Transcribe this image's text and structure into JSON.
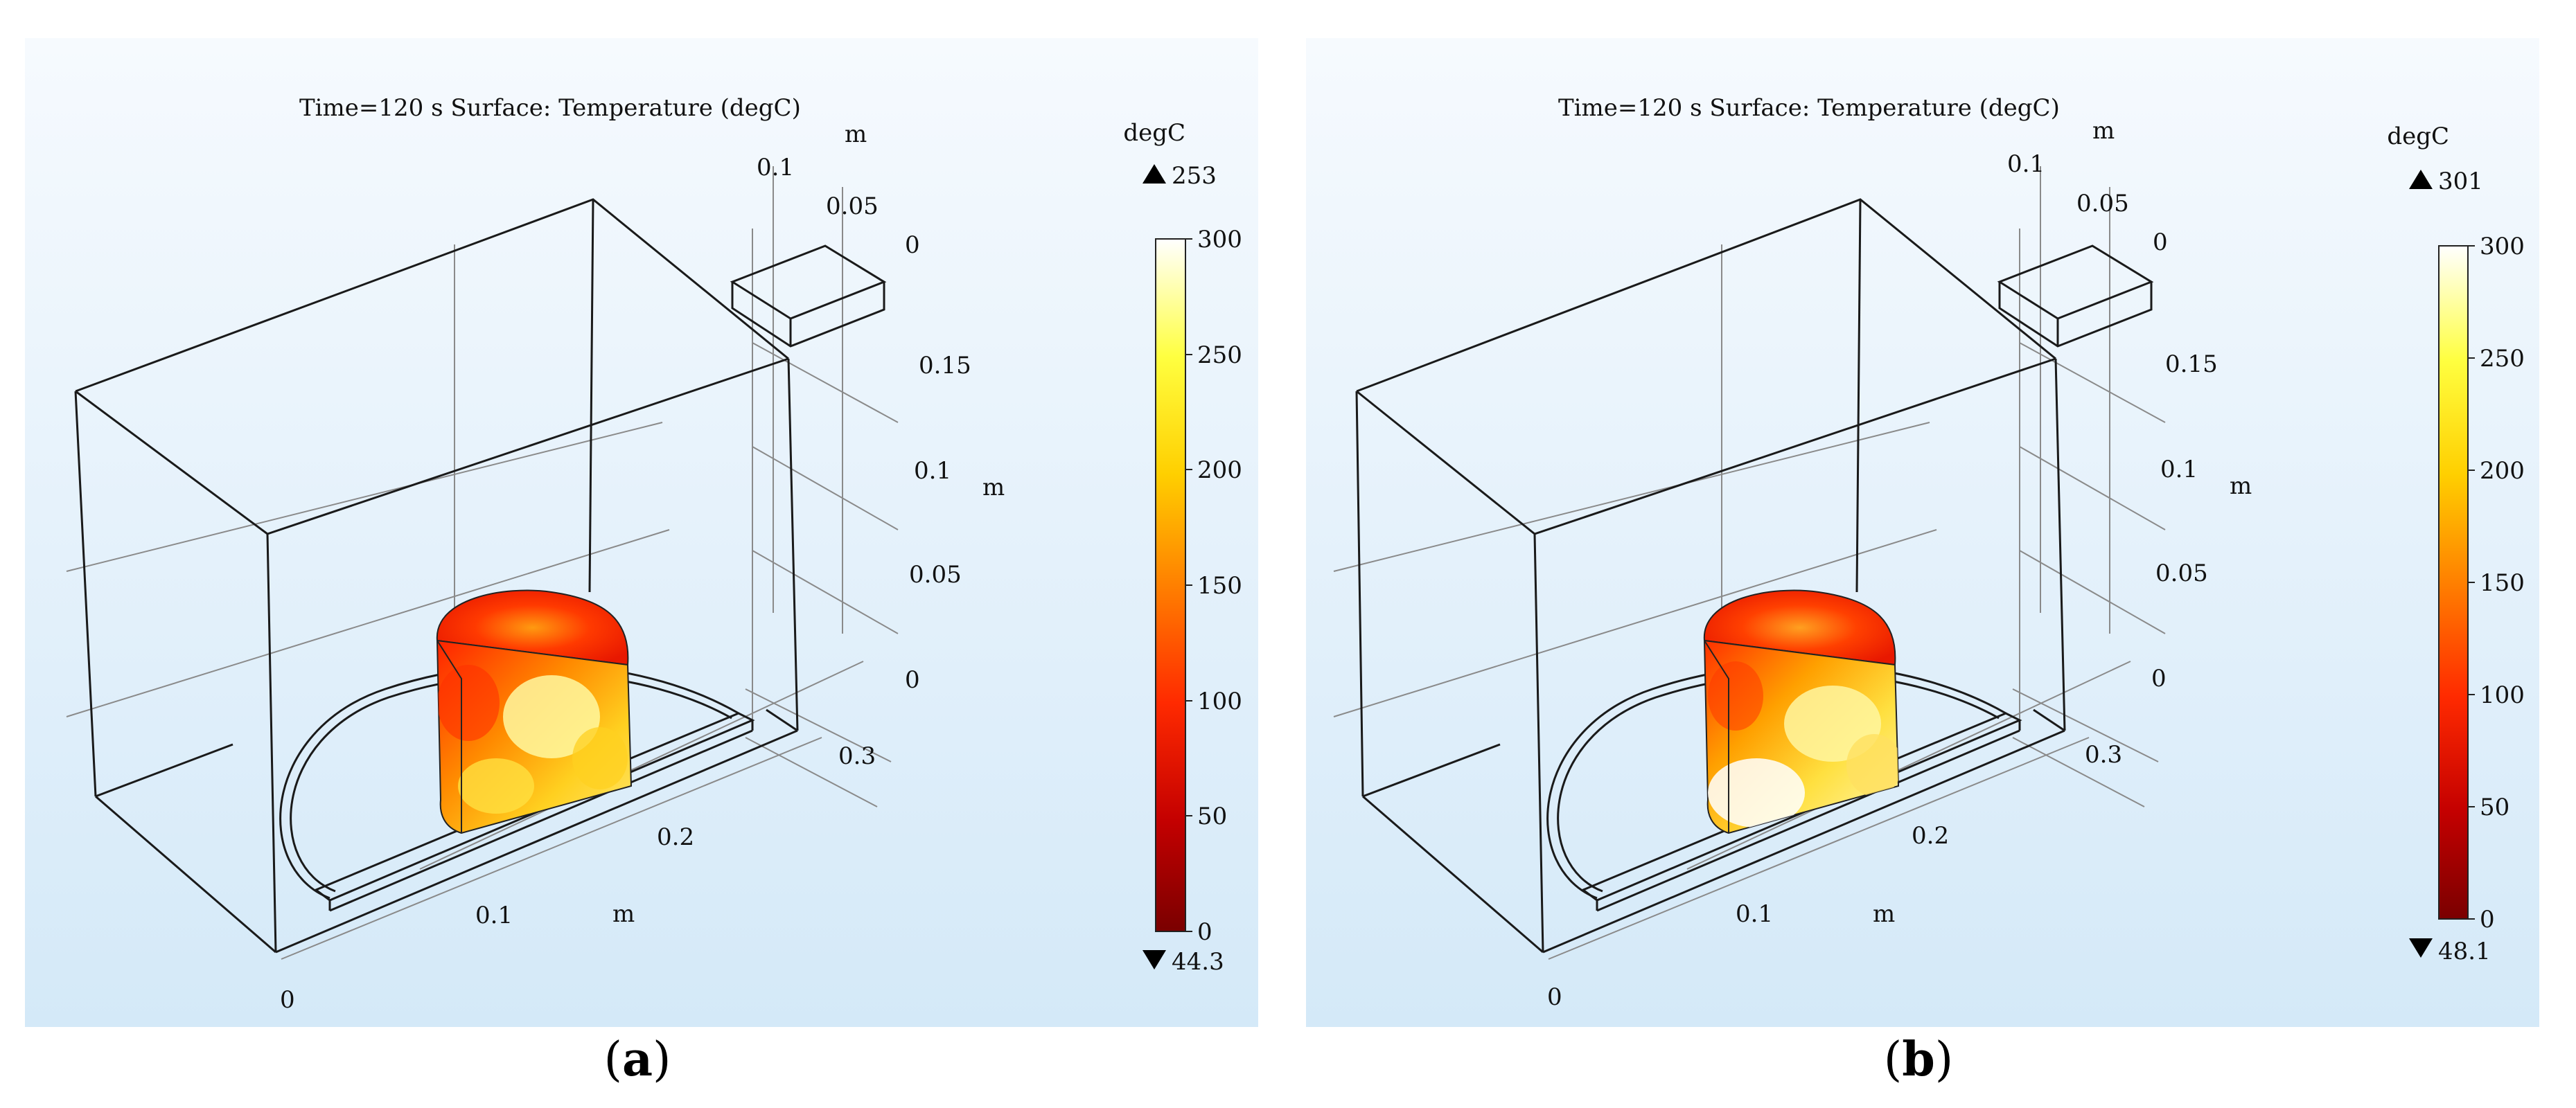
{
  "panels": [
    {
      "caption": "a",
      "title": "Time=120 s   Surface: Temperature (degC)",
      "unit_label": "m",
      "axis_ticks": {
        "top_depth": [
          "0.1",
          "0.05",
          "0"
        ],
        "height": [
          "0.15",
          "0.1",
          "0.05",
          "0"
        ],
        "bottom": [
          "0.3",
          "0.2",
          "0.1",
          "0"
        ]
      },
      "colorbar": {
        "unit": "degC",
        "max_marker": "253",
        "min_marker": "44.3",
        "ticks": [
          "300",
          "250",
          "200",
          "150",
          "100",
          "50",
          "0"
        ],
        "colormap": [
          "#7a0000",
          "#c40000",
          "#ff2a00",
          "#ff8000",
          "#ffcf00",
          "#ffff40",
          "#ffffff"
        ]
      }
    },
    {
      "caption": "b",
      "title": "Time=120 s   Surface: Temperature (degC)",
      "unit_label": "m",
      "axis_ticks": {
        "top_depth": [
          "0.1",
          "0.05",
          "0"
        ],
        "height": [
          "0.15",
          "0.1",
          "0.05",
          "0"
        ],
        "bottom": [
          "0.3",
          "0.2",
          "0.1",
          "0"
        ]
      },
      "colorbar": {
        "unit": "degC",
        "max_marker": "301",
        "min_marker": "48.1",
        "ticks": [
          "300",
          "250",
          "200",
          "150",
          "100",
          "50",
          "0"
        ],
        "colormap": [
          "#7a0000",
          "#c40000",
          "#ff2a00",
          "#ff8000",
          "#ffcf00",
          "#ffff40",
          "#ffffff"
        ]
      }
    }
  ]
}
